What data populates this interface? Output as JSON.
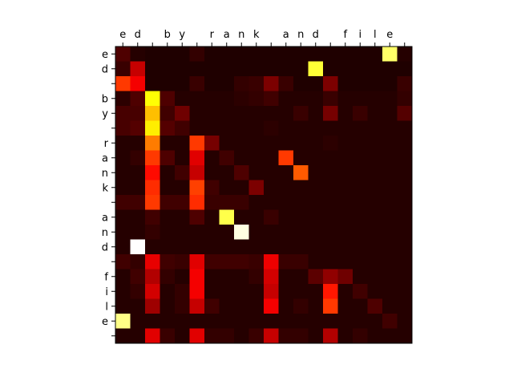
{
  "chart_data": {
    "type": "heatmap",
    "colormap": "hot",
    "title": "",
    "xlabel": "",
    "ylabel": "",
    "x_tick_labels": [
      "e",
      "d",
      " ",
      "b",
      "y",
      " ",
      "r",
      "a",
      "n",
      "k",
      " ",
      "a",
      "n",
      "d",
      " ",
      "f",
      "i",
      "l",
      "e",
      " "
    ],
    "y_tick_labels": [
      "e",
      "d",
      " ",
      "b",
      "y",
      " ",
      "r",
      "a",
      "n",
      "k",
      " ",
      "a",
      "n",
      "d",
      " ",
      "f",
      "i",
      "l",
      "e",
      " "
    ],
    "value_range": [
      0,
      1
    ],
    "values": [
      [
        0.1,
        0.04,
        0.03,
        0.03,
        0.03,
        0.06,
        0.03,
        0.03,
        0.03,
        0.03,
        0.03,
        0.03,
        0.03,
        0.03,
        0.03,
        0.03,
        0.03,
        0.03,
        0.85,
        0.04
      ],
      [
        0.07,
        0.28,
        0.03,
        0.03,
        0.03,
        0.03,
        0.03,
        0.03,
        0.03,
        0.03,
        0.03,
        0.03,
        0.03,
        0.8,
        0.03,
        0.03,
        0.03,
        0.03,
        0.03,
        0.03
      ],
      [
        0.45,
        0.35,
        0.03,
        0.03,
        0.03,
        0.07,
        0.03,
        0.03,
        0.06,
        0.07,
        0.17,
        0.07,
        0.03,
        0.03,
        0.17,
        0.03,
        0.03,
        0.03,
        0.03,
        0.07
      ],
      [
        0.05,
        0.1,
        0.75,
        0.1,
        0.04,
        0.04,
        0.04,
        0.04,
        0.05,
        0.06,
        0.08,
        0.04,
        0.04,
        0.04,
        0.07,
        0.04,
        0.04,
        0.04,
        0.04,
        0.06
      ],
      [
        0.09,
        0.09,
        0.65,
        0.08,
        0.15,
        0.04,
        0.04,
        0.04,
        0.04,
        0.04,
        0.04,
        0.04,
        0.07,
        0.04,
        0.16,
        0.04,
        0.07,
        0.04,
        0.04,
        0.11
      ],
      [
        0.09,
        0.11,
        0.72,
        0.11,
        0.08,
        0.04,
        0.04,
        0.04,
        0.04,
        0.04,
        0.05,
        0.04,
        0.04,
        0.04,
        0.04,
        0.04,
        0.04,
        0.04,
        0.04,
        0.04
      ],
      [
        0.04,
        0.04,
        0.55,
        0.04,
        0.04,
        0.45,
        0.16,
        0.04,
        0.04,
        0.04,
        0.04,
        0.04,
        0.04,
        0.04,
        0.05,
        0.04,
        0.04,
        0.04,
        0.04,
        0.04
      ],
      [
        0.04,
        0.06,
        0.45,
        0.1,
        0.04,
        0.32,
        0.04,
        0.08,
        0.04,
        0.04,
        0.04,
        0.45,
        0.04,
        0.04,
        0.04,
        0.04,
        0.04,
        0.04,
        0.04,
        0.04
      ],
      [
        0.04,
        0.04,
        0.38,
        0.04,
        0.08,
        0.28,
        0.04,
        0.04,
        0.1,
        0.04,
        0.04,
        0.04,
        0.5,
        0.04,
        0.04,
        0.04,
        0.04,
        0.04,
        0.04,
        0.04
      ],
      [
        0.04,
        0.04,
        0.43,
        0.04,
        0.04,
        0.46,
        0.08,
        0.04,
        0.04,
        0.17,
        0.04,
        0.04,
        0.04,
        0.04,
        0.04,
        0.04,
        0.04,
        0.04,
        0.04,
        0.04
      ],
      [
        0.08,
        0.08,
        0.45,
        0.08,
        0.08,
        0.43,
        0.07,
        0.07,
        0.07,
        0.04,
        0.04,
        0.04,
        0.04,
        0.04,
        0.04,
        0.04,
        0.04,
        0.04,
        0.04,
        0.04
      ],
      [
        0.04,
        0.04,
        0.08,
        0.04,
        0.04,
        0.1,
        0.04,
        0.82,
        0.04,
        0.04,
        0.07,
        0.04,
        0.04,
        0.04,
        0.04,
        0.04,
        0.04,
        0.04,
        0.04,
        0.04
      ],
      [
        0.04,
        0.04,
        0.06,
        0.04,
        0.04,
        0.04,
        0.04,
        0.04,
        0.97,
        0.04,
        0.04,
        0.04,
        0.04,
        0.04,
        0.04,
        0.04,
        0.04,
        0.04,
        0.04,
        0.04
      ],
      [
        0.04,
        1.0,
        0.04,
        0.04,
        0.04,
        0.04,
        0.04,
        0.04,
        0.04,
        0.04,
        0.04,
        0.04,
        0.04,
        0.04,
        0.04,
        0.04,
        0.04,
        0.04,
        0.04,
        0.04
      ],
      [
        0.08,
        0.06,
        0.33,
        0.08,
        0.07,
        0.32,
        0.08,
        0.08,
        0.08,
        0.07,
        0.34,
        0.07,
        0.07,
        0.04,
        0.04,
        0.04,
        0.04,
        0.04,
        0.04,
        0.04
      ],
      [
        0.04,
        0.08,
        0.25,
        0.06,
        0.04,
        0.35,
        0.04,
        0.04,
        0.04,
        0.06,
        0.3,
        0.04,
        0.04,
        0.12,
        0.2,
        0.15,
        0.04,
        0.04,
        0.04,
        0.04
      ],
      [
        0.04,
        0.06,
        0.3,
        0.04,
        0.06,
        0.35,
        0.04,
        0.04,
        0.04,
        0.04,
        0.28,
        0.04,
        0.04,
        0.04,
        0.4,
        0.04,
        0.08,
        0.04,
        0.04,
        0.04
      ],
      [
        0.04,
        0.04,
        0.22,
        0.04,
        0.06,
        0.28,
        0.08,
        0.04,
        0.04,
        0.04,
        0.35,
        0.04,
        0.06,
        0.04,
        0.45,
        0.04,
        0.04,
        0.1,
        0.04,
        0.04
      ],
      [
        0.88,
        0.04,
        0.04,
        0.04,
        0.04,
        0.04,
        0.04,
        0.04,
        0.04,
        0.04,
        0.04,
        0.04,
        0.04,
        0.04,
        0.04,
        0.04,
        0.04,
        0.04,
        0.08,
        0.04
      ],
      [
        0.04,
        0.04,
        0.32,
        0.07,
        0.04,
        0.32,
        0.06,
        0.06,
        0.04,
        0.07,
        0.28,
        0.06,
        0.06,
        0.04,
        0.25,
        0.04,
        0.06,
        0.04,
        0.04,
        0.04
      ]
    ]
  }
}
